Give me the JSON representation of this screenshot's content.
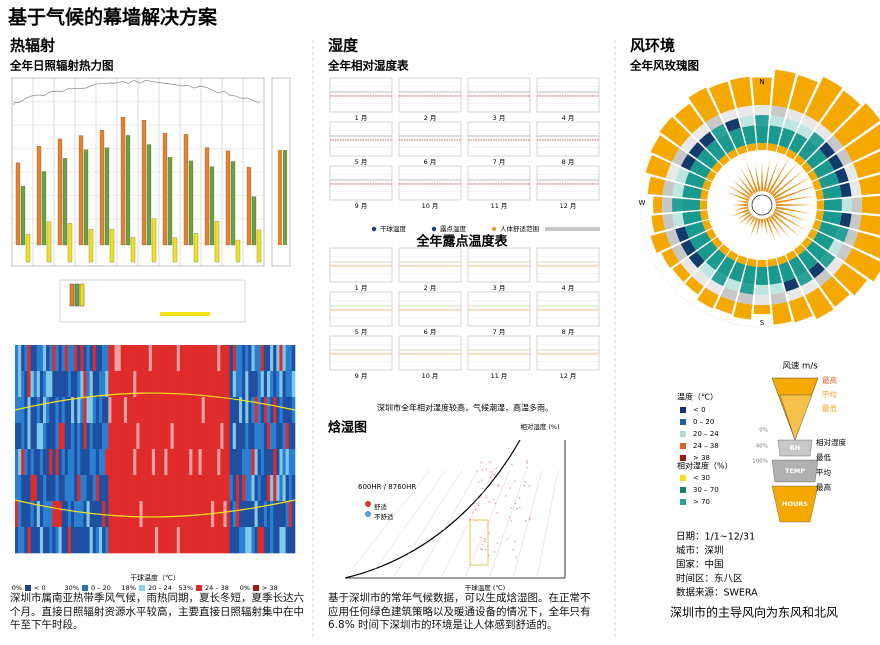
{
  "header": {
    "title": "基于气候的幕墙解决方案"
  },
  "radiation": {
    "heading": "热辐射",
    "subtitle": "全年日照辐射热力图",
    "heatmap_legend_title": "干球温度（℃）",
    "heatmap_bins": [
      {
        "pct": "0%",
        "label": "< 0"
      },
      {
        "pct": "30%",
        "label": "0 – 20"
      },
      {
        "pct": "18%",
        "label": "20 – 24"
      },
      {
        "pct": "53%",
        "label": "24 – 38"
      },
      {
        "pct": "0%",
        "label": "> 38"
      }
    ],
    "paragraph": "深圳市属南亚热带季风气候，雨热同期，夏长冬短，夏季长达六个月。直接日照辐射资源水平较高，主要直接日照辐射集中在中午至下午时段。"
  },
  "humidity": {
    "heading": "湿度",
    "subtitle": "全年相对湿度表",
    "months": [
      "1 月",
      "2 月",
      "3 月",
      "4 月",
      "5 月",
      "6 月",
      "7 月",
      "8 月",
      "9 月",
      "10 月",
      "11 月",
      "12 月"
    ],
    "legend": [
      "干球温度",
      "露点温度",
      "人体舒适范围"
    ],
    "dew_title": "全年露点温度表",
    "caption": "深圳市全年相对湿度较高，气候潮湿，高温多雨。",
    "psychro": {
      "heading": "焓湿图",
      "hours": "600HR / 8760HR",
      "comfort": "舒适",
      "discomfort": "不舒适",
      "rh_label": "相对湿度 (%)",
      "x_label": "干球温度 (℃)"
    },
    "paragraph": "基于深圳市的常年气候数据，可以生成焓湿图。在正常不应用任何绿色建筑策略以及暖通设备的情况下，全年只有6.8% 时间下深圳市的环境是让人体感到舒适的。"
  },
  "wind": {
    "heading": "风环境",
    "subtitle": "全年风玫瑰图",
    "directions": [
      "N",
      "W",
      "S"
    ],
    "temp_title": "温度（℃）",
    "temp_bins": [
      "< 0",
      "0 – 20",
      "20 – 24",
      "24 – 38",
      "> 38"
    ],
    "rh_title": "相对湿度（%）",
    "rh_bins": [
      "< 30",
      "30 – 70",
      "> 70"
    ],
    "speed_title": "风速 m/s",
    "speed_labels": [
      "最高",
      "平均",
      "最低"
    ],
    "band_labels": [
      "相对湿度",
      "最低",
      "平均",
      "最高"
    ],
    "band_names": [
      "RH",
      "TEMP",
      "HOURS"
    ],
    "scale": [
      "0%",
      "40%",
      "100%"
    ],
    "info": [
      "日期：1/1~12/31",
      "城市：深圳",
      "国家：中国",
      "时间区：东八区",
      "数据来源：SWERA"
    ],
    "conclusion": "深圳市的主导风向为东风和北风"
  }
}
